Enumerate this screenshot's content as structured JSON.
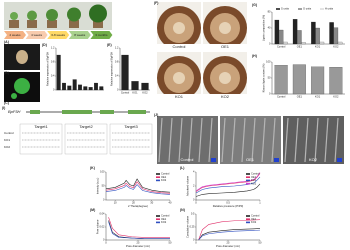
{
  "panel_labels": [
    "(A)",
    "(B)",
    "(C)",
    "(D)",
    "(E)",
    "(F)",
    "(G)",
    "(H)",
    "(I)",
    "(J)",
    "(K)",
    "(L)",
    "(M)",
    "(N)"
  ],
  "stages": [
    "2 weeks",
    "4 weeks",
    "6-8 weeks",
    "8 weeks",
    "3 months"
  ],
  "wood_sections": [
    "Control",
    "OE1",
    "KO1",
    "KO2"
  ],
  "micrographs": [
    "Control",
    "OE1",
    "KO2"
  ],
  "gene": {
    "name": "BpF5H",
    "targets": [
      "Target1",
      "Target2",
      "Target3"
    ],
    "lines": [
      "Control",
      "KO1",
      "KO2"
    ]
  },
  "chart_data": [
    {
      "type": "bar",
      "ylabel": "Relative expression of BpF5H",
      "categories": [
        null,
        null,
        null,
        null,
        null,
        null,
        null,
        null,
        null
      ],
      "values": [
        1.0,
        0.2,
        0.12,
        0.3,
        0.15,
        0.1,
        0.08,
        0.2,
        0.1
      ],
      "color": "#222222",
      "ylim": [
        0,
        1.2
      ],
      "yticks": [
        0,
        0.4,
        0.8,
        1.2
      ]
    },
    {
      "type": "bar",
      "ylabel": "Relative expression of BpF5H",
      "categories": [
        "Control",
        "KO1",
        "KO2"
      ],
      "values": [
        1.0,
        0.25,
        0.2
      ],
      "color": "#222222",
      "ylim": [
        0,
        1.2
      ],
      "yticks": [
        0,
        0.4,
        0.8,
        1.2
      ]
    },
    {
      "type": "bar",
      "ylabel": "Lignin composition (%)",
      "categories": [
        "Control",
        "OE1",
        "KO1",
        "KO2"
      ],
      "series": [
        {
          "name": "S units",
          "color": "#222222",
          "values": [
            60,
            62,
            55,
            54
          ]
        },
        {
          "name": "G units",
          "color": "#888888",
          "values": [
            35,
            34,
            40,
            41
          ]
        },
        {
          "name": "H units",
          "color": "#dddddd",
          "values": [
            5,
            4,
            5,
            5
          ]
        }
      ],
      "ylim": [
        0,
        80
      ],
      "yticks": [
        0,
        40,
        80
      ]
    },
    {
      "type": "bar",
      "ylabel": "Klason lignin content (%)",
      "categories": [
        "Control",
        "OE1",
        "KO1",
        "KO2"
      ],
      "values": [
        90,
        92,
        85,
        84
      ],
      "color": "#999999",
      "ylim": [
        0,
        100
      ],
      "yticks": [
        0,
        50,
        100
      ]
    },
    {
      "type": "line",
      "ylabel": "Intensity (a.u.)",
      "xlabel": "2 Theta(degree)",
      "x": [
        5,
        10,
        15,
        16,
        18,
        20,
        22,
        25,
        30,
        35,
        40
      ],
      "series": [
        {
          "name": "Control",
          "color": "#222222",
          "values": [
            40,
            45,
            60,
            70,
            55,
            50,
            75,
            45,
            35,
            30,
            28
          ]
        },
        {
          "name": "OE1",
          "color": "#e0306a",
          "values": [
            35,
            40,
            52,
            60,
            48,
            44,
            65,
            40,
            30,
            26,
            24
          ]
        },
        {
          "name": "KO2",
          "color": "#3050c0",
          "values": [
            30,
            34,
            45,
            52,
            42,
            38,
            55,
            34,
            26,
            22,
            20
          ]
        }
      ],
      "xlim": [
        5,
        40
      ],
      "xticks": [
        10,
        20,
        30,
        40
      ],
      "ylim": [
        0,
        100
      ],
      "yticks": [
        0,
        50,
        100
      ]
    },
    {
      "type": "line",
      "ylabel": "Adsorbed volume",
      "xlabel": "Relative pressure (P/P0)",
      "x": [
        0,
        0.1,
        0.2,
        0.4,
        0.6,
        0.8,
        0.9,
        0.95,
        1
      ],
      "series": [
        {
          "name": "Control",
          "color": "#222222",
          "values": [
            0.5,
            0.8,
            0.9,
            1,
            1.1,
            1.3,
            1.5,
            1.8,
            2.3
          ]
        },
        {
          "name": "OE1",
          "color": "#e0306a",
          "values": [
            1.2,
            1.8,
            2,
            2.2,
            2.4,
            2.6,
            2.8,
            3.2,
            3.8
          ]
        },
        {
          "name": "KO1",
          "color": "#3050c0",
          "values": [
            1,
            1.5,
            1.7,
            1.9,
            2,
            2.2,
            2.4,
            2.8,
            3.3
          ]
        },
        {
          "name": "KO2",
          "color": "#d040d0",
          "values": [
            1.3,
            1.9,
            2.1,
            2.3,
            2.5,
            2.7,
            2.9,
            3.3,
            3.9
          ]
        }
      ],
      "xlim": [
        0,
        1
      ],
      "xticks": [
        0,
        0.5,
        1
      ],
      "ylim": [
        0,
        4
      ],
      "yticks": [
        0,
        2,
        4
      ]
    },
    {
      "type": "line",
      "ylabel": "Pore volume",
      "xlabel": "Pore diameter (nm)",
      "x": [
        2,
        5,
        10,
        20,
        30,
        40,
        50
      ],
      "series": [
        {
          "name": "Control",
          "color": "#222222",
          "values": [
            0.03,
            0.012,
            0.005,
            0.003,
            0.002,
            0.002,
            0.002
          ]
        },
        {
          "name": "OE1",
          "color": "#e0306a",
          "values": [
            0.035,
            0.018,
            0.008,
            0.005,
            0.004,
            0.004,
            0.004
          ]
        },
        {
          "name": "KO2",
          "color": "#3050c0",
          "values": [
            0.028,
            0.01,
            0.004,
            0.003,
            0.002,
            0.002,
            0.002
          ]
        }
      ],
      "xlim": [
        0,
        50
      ],
      "xticks": [
        0,
        25,
        50
      ],
      "ylim": [
        0,
        0.04
      ],
      "yticks": [
        0,
        0.02,
        0.04
      ]
    },
    {
      "type": "line",
      "ylabel": "Cumulative volume",
      "xlabel": "Pore diameter (nm)",
      "x": [
        2,
        5,
        10,
        20,
        30,
        40,
        50
      ],
      "series": [
        {
          "name": "Control",
          "color": "#222222",
          "values": [
            0,
            0.1,
            0.15,
            0.18,
            0.2,
            0.21,
            0.22
          ]
        },
        {
          "name": "OE1",
          "color": "#e0306a",
          "values": [
            0,
            0.2,
            0.3,
            0.35,
            0.37,
            0.38,
            0.39
          ]
        },
        {
          "name": "KO2",
          "color": "#3050c0",
          "values": [
            0,
            0.08,
            0.12,
            0.15,
            0.17,
            0.18,
            0.19
          ]
        }
      ],
      "xlim": [
        0,
        50
      ],
      "xticks": [
        0,
        25,
        50
      ],
      "ylim": [
        0,
        0.5
      ],
      "yticks": [
        0,
        0.25,
        0.5
      ]
    }
  ]
}
